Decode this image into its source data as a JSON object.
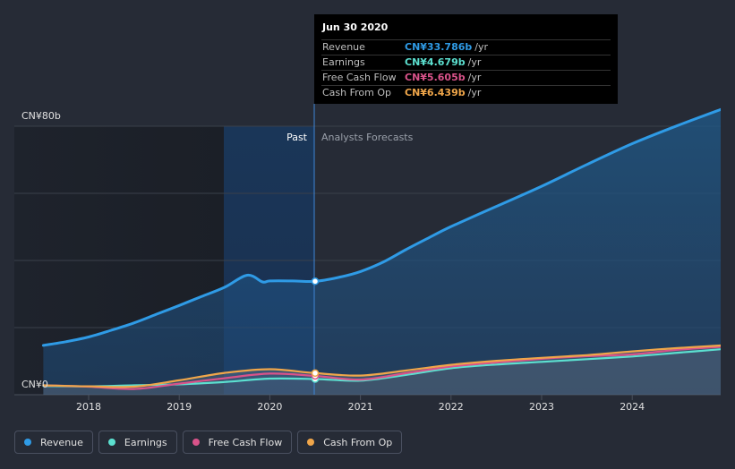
{
  "chart_data": {
    "type": "line",
    "ylim": [
      0,
      80
    ],
    "y_top_label": "CN¥80b",
    "y_bottom_label": "CN¥0",
    "x_ticks": [
      "2018",
      "2019",
      "2020",
      "2021",
      "2022",
      "2023",
      "2024"
    ],
    "past_label": "Past",
    "forecast_label": "Analysts Forecasts",
    "divider_date": 2020.5,
    "series": [
      {
        "name": "Revenue",
        "color": "#2f9be6",
        "area": true,
        "points": [
          [
            2017.5,
            14.7
          ],
          [
            2017.75,
            15.8
          ],
          [
            2018.0,
            17.2
          ],
          [
            2018.25,
            19.2
          ],
          [
            2018.5,
            21.4
          ],
          [
            2018.75,
            24.0
          ],
          [
            2019.0,
            26.6
          ],
          [
            2019.25,
            29.3
          ],
          [
            2019.5,
            32.0
          ],
          [
            2019.75,
            35.6
          ],
          [
            2019.92,
            33.6
          ],
          [
            2020.0,
            33.9
          ],
          [
            2020.25,
            33.9
          ],
          [
            2020.5,
            33.786
          ],
          [
            2020.75,
            34.9
          ],
          [
            2021.0,
            36.7
          ],
          [
            2021.25,
            39.5
          ],
          [
            2021.5,
            43.2
          ],
          [
            2021.75,
            46.7
          ],
          [
            2022.0,
            50.1
          ],
          [
            2022.5,
            56.1
          ],
          [
            2023.0,
            62.1
          ],
          [
            2023.5,
            68.6
          ],
          [
            2024.0,
            74.8
          ],
          [
            2024.5,
            80.2
          ],
          [
            2025.0,
            85.2
          ]
        ]
      },
      {
        "name": "Earnings",
        "color": "#5ce0d0",
        "area": false,
        "points": [
          [
            2017.5,
            2.6
          ],
          [
            2018.0,
            2.5
          ],
          [
            2018.5,
            2.8
          ],
          [
            2019.0,
            3.1
          ],
          [
            2019.5,
            3.8
          ],
          [
            2020.0,
            4.8
          ],
          [
            2020.5,
            4.679
          ],
          [
            2021.0,
            4.2
          ],
          [
            2021.5,
            5.9
          ],
          [
            2022.0,
            7.9
          ],
          [
            2022.5,
            9.0
          ],
          [
            2023.0,
            9.8
          ],
          [
            2023.5,
            10.6
          ],
          [
            2024.0,
            11.4
          ],
          [
            2024.5,
            12.5
          ],
          [
            2025.0,
            13.6
          ]
        ]
      },
      {
        "name": "Free Cash Flow",
        "color": "#d9538a",
        "area": false,
        "points": [
          [
            2017.5,
            2.8
          ],
          [
            2018.0,
            2.4
          ],
          [
            2018.5,
            1.7
          ],
          [
            2019.0,
            3.3
          ],
          [
            2019.5,
            4.9
          ],
          [
            2020.0,
            6.3
          ],
          [
            2020.5,
            5.605
          ],
          [
            2021.0,
            4.5
          ],
          [
            2021.5,
            6.4
          ],
          [
            2022.0,
            8.4
          ],
          [
            2022.5,
            9.6
          ],
          [
            2023.0,
            10.7
          ],
          [
            2023.5,
            11.5
          ],
          [
            2024.0,
            12.0
          ],
          [
            2024.5,
            13.4
          ],
          [
            2025.0,
            14.3
          ]
        ]
      },
      {
        "name": "Cash From Op",
        "color": "#f0a64a",
        "area": false,
        "points": [
          [
            2017.5,
            2.8
          ],
          [
            2018.0,
            2.5
          ],
          [
            2018.5,
            2.4
          ],
          [
            2019.0,
            4.3
          ],
          [
            2019.5,
            6.5
          ],
          [
            2020.0,
            7.6
          ],
          [
            2020.5,
            6.439
          ],
          [
            2021.0,
            5.7
          ],
          [
            2021.5,
            7.2
          ],
          [
            2022.0,
            8.9
          ],
          [
            2022.5,
            10.1
          ],
          [
            2023.0,
            11.0
          ],
          [
            2023.5,
            11.8
          ],
          [
            2024.0,
            12.9
          ],
          [
            2024.5,
            13.9
          ],
          [
            2025.0,
            14.7
          ]
        ]
      }
    ]
  },
  "tooltip": {
    "date": "Jun 30 2020",
    "rows": [
      {
        "label": "Revenue",
        "value": "CN¥33.786b",
        "unit": "/yr",
        "color": "#2f9be6"
      },
      {
        "label": "Earnings",
        "value": "CN¥4.679b",
        "unit": "/yr",
        "color": "#5ce0d0"
      },
      {
        "label": "Free Cash Flow",
        "value": "CN¥5.605b",
        "unit": "/yr",
        "color": "#d9538a"
      },
      {
        "label": "Cash From Op",
        "value": "CN¥6.439b",
        "unit": "/yr",
        "color": "#f0a64a"
      }
    ]
  },
  "legend": [
    {
      "label": "Revenue",
      "color": "#2f9be6"
    },
    {
      "label": "Earnings",
      "color": "#5ce0d0"
    },
    {
      "label": "Free Cash Flow",
      "color": "#d9538a"
    },
    {
      "label": "Cash From Op",
      "color": "#f0a64a"
    }
  ]
}
